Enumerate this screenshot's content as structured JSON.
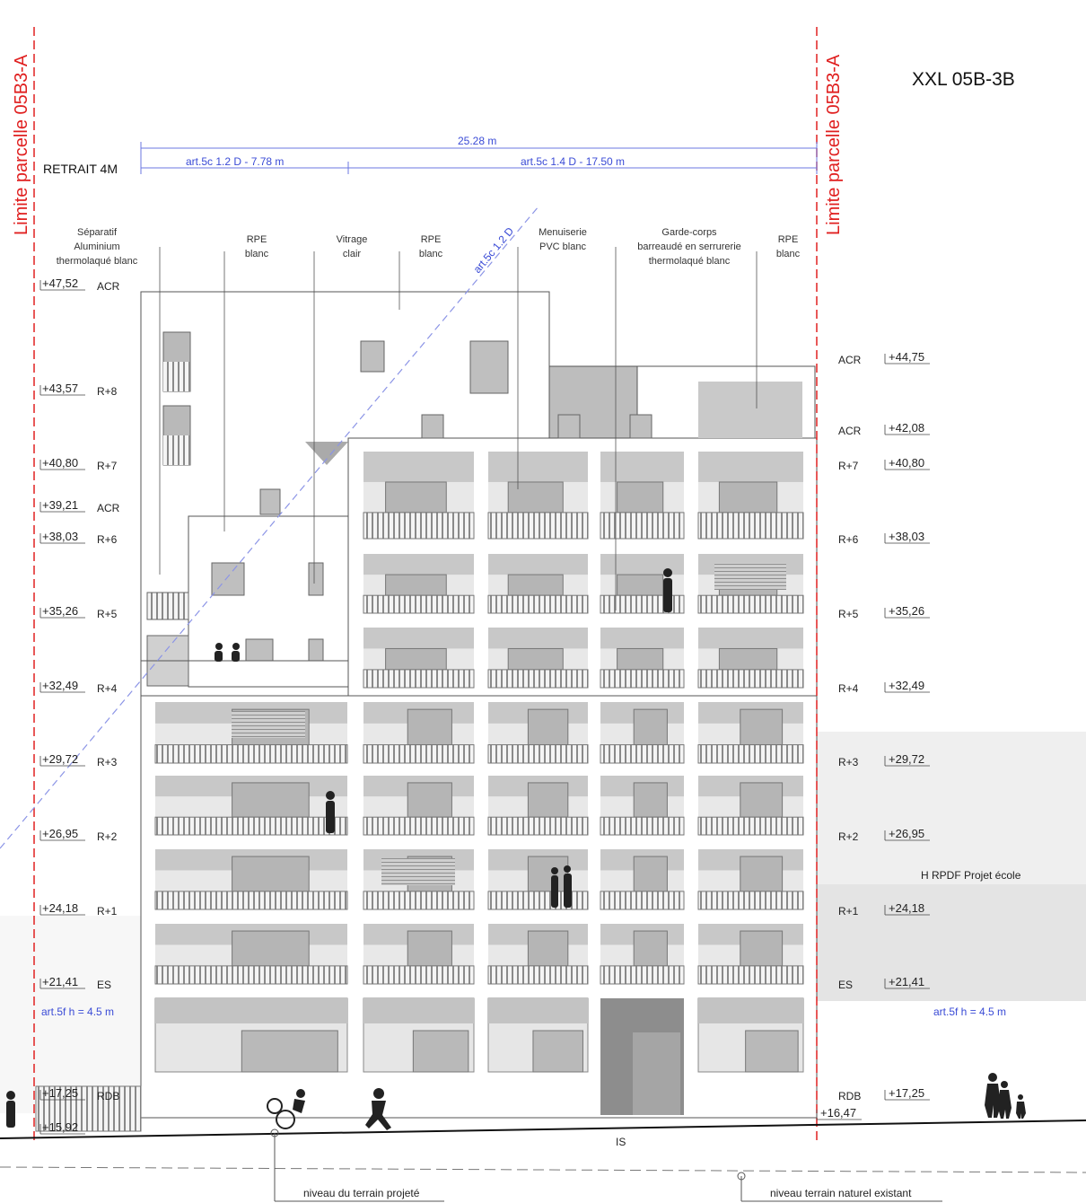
{
  "title": "XXL 05B-3B",
  "parcel_limit_left": "Limite parcelle 05B3-A",
  "parcel_limit_right": "Limite parcelle 05B3-A",
  "retrait": "RETRAIT 4M",
  "dimensions": {
    "total": "25.28 m",
    "left": "art.5c 1.2 D - 7.78 m",
    "right": "art.5c 1.4 D - 17.50 m",
    "diagonal": "art.5c 1.2 D",
    "h_left": "art.5f h = 4.5 m",
    "h_right": "art.5f h = 4.5 m"
  },
  "materials": [
    {
      "text": "Séparatif\nAluminium\nthermolaqué blanc"
    },
    {
      "text": "RPE\nblanc"
    },
    {
      "text": "Vitrage\nclair"
    },
    {
      "text": "RPE\nblanc"
    },
    {
      "text": "Menuiserie\nPVC blanc"
    },
    {
      "text": "Garde-corps\nbarreaudé en serrurerie\nthermolaqué blanc"
    },
    {
      "text": "RPE\nblanc"
    }
  ],
  "levels_left": [
    {
      "value": "+47,52",
      "name": "ACR"
    },
    {
      "value": "+43,57",
      "name": "R+8"
    },
    {
      "value": "+40,80",
      "name": "R+7"
    },
    {
      "value": "+39,21",
      "name": "ACR"
    },
    {
      "value": "+38,03",
      "name": "R+6"
    },
    {
      "value": "+35,26",
      "name": "R+5"
    },
    {
      "value": "+32,49",
      "name": "R+4"
    },
    {
      "value": "+29,72",
      "name": "R+3"
    },
    {
      "value": "+26,95",
      "name": "R+2"
    },
    {
      "value": "+24,18",
      "name": "R+1"
    },
    {
      "value": "+21,41",
      "name": "ES"
    },
    {
      "value": "+17,25",
      "name": "RDB"
    },
    {
      "value": "+15,92",
      "name": ""
    }
  ],
  "levels_right": [
    {
      "value": "+44,75",
      "name": "ACR"
    },
    {
      "value": "+42,08",
      "name": "ACR"
    },
    {
      "value": "+40,80",
      "name": "R+7"
    },
    {
      "value": "+38,03",
      "name": "R+6"
    },
    {
      "value": "+35,26",
      "name": "R+5"
    },
    {
      "value": "+32,49",
      "name": "R+4"
    },
    {
      "value": "+29,72",
      "name": "R+3"
    },
    {
      "value": "+26,95",
      "name": "R+2"
    },
    {
      "value": "+24,18",
      "name": "R+1"
    },
    {
      "value": "+21,41",
      "name": "ES"
    },
    {
      "value": "+17,25",
      "name": "RDB"
    },
    {
      "value": "+16,47",
      "name": ""
    }
  ],
  "school_label": "H RPDF Projet école",
  "is_label": "IS",
  "ground_projected": "niveau du terrain projeté",
  "ground_natural": "niveau terrain naturel existant"
}
